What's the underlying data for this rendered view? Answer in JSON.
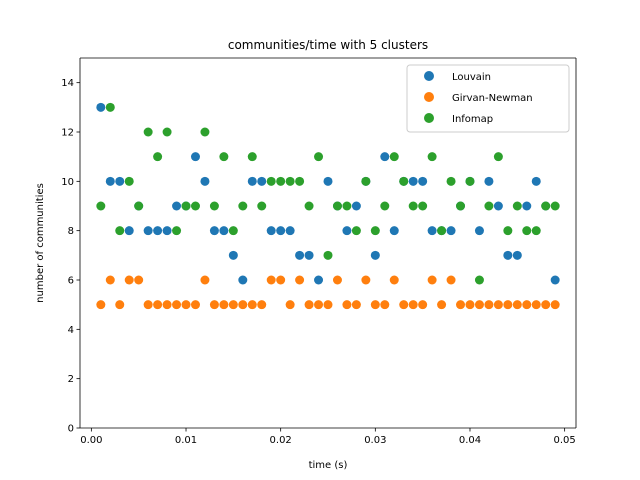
{
  "chart_data": {
    "type": "scatter",
    "title": "communities/time with 5 clusters",
    "xlabel": "time (s)",
    "ylabel": "number of communities",
    "xlim": [
      -0.0012,
      0.0512
    ],
    "ylim": [
      0,
      15
    ],
    "xticks": [
      0.0,
      0.01,
      0.02,
      0.03,
      0.04,
      0.05
    ],
    "xtick_labels": [
      "0.00",
      "0.01",
      "0.02",
      "0.03",
      "0.04",
      "0.05"
    ],
    "yticks": [
      0,
      2,
      4,
      6,
      8,
      10,
      12,
      14
    ],
    "ytick_labels": [
      "0",
      "2",
      "4",
      "6",
      "8",
      "10",
      "12",
      "14"
    ],
    "grid": false,
    "legend_position": "upper-right",
    "series": [
      {
        "name": "Louvain",
        "color": "#1f77b4",
        "points": [
          [
            0.001,
            13
          ],
          [
            0.002,
            10
          ],
          [
            0.003,
            10
          ],
          [
            0.004,
            8
          ],
          [
            0.005,
            9
          ],
          [
            0.006,
            8
          ],
          [
            0.007,
            8
          ],
          [
            0.008,
            8
          ],
          [
            0.009,
            9
          ],
          [
            0.01,
            9
          ],
          [
            0.011,
            11
          ],
          [
            0.012,
            10
          ],
          [
            0.013,
            8
          ],
          [
            0.014,
            8
          ],
          [
            0.015,
            7
          ],
          [
            0.016,
            6
          ],
          [
            0.017,
            10
          ],
          [
            0.018,
            10
          ],
          [
            0.019,
            8
          ],
          [
            0.02,
            8
          ],
          [
            0.021,
            8
          ],
          [
            0.022,
            7
          ],
          [
            0.023,
            7
          ],
          [
            0.024,
            6
          ],
          [
            0.025,
            10
          ],
          [
            0.026,
            9
          ],
          [
            0.027,
            8
          ],
          [
            0.028,
            9
          ],
          [
            0.029,
            10
          ],
          [
            0.03,
            7
          ],
          [
            0.031,
            11
          ],
          [
            0.032,
            8
          ],
          [
            0.033,
            10
          ],
          [
            0.034,
            10
          ],
          [
            0.035,
            10
          ],
          [
            0.036,
            8
          ],
          [
            0.037,
            8
          ],
          [
            0.038,
            8
          ],
          [
            0.039,
            9
          ],
          [
            0.04,
            10
          ],
          [
            0.041,
            8
          ],
          [
            0.042,
            10
          ],
          [
            0.043,
            9
          ],
          [
            0.044,
            7
          ],
          [
            0.045,
            7
          ],
          [
            0.046,
            9
          ],
          [
            0.047,
            10
          ],
          [
            0.048,
            9
          ],
          [
            0.049,
            6
          ]
        ]
      },
      {
        "name": "Girvan-Newman",
        "color": "#ff7f0e",
        "points": [
          [
            0.001,
            5
          ],
          [
            0.002,
            6
          ],
          [
            0.003,
            5
          ],
          [
            0.004,
            6
          ],
          [
            0.005,
            6
          ],
          [
            0.006,
            5
          ],
          [
            0.007,
            5
          ],
          [
            0.008,
            5
          ],
          [
            0.009,
            5
          ],
          [
            0.01,
            5
          ],
          [
            0.011,
            5
          ],
          [
            0.012,
            6
          ],
          [
            0.013,
            5
          ],
          [
            0.014,
            5
          ],
          [
            0.015,
            5
          ],
          [
            0.016,
            5
          ],
          [
            0.017,
            5
          ],
          [
            0.018,
            5
          ],
          [
            0.019,
            6
          ],
          [
            0.02,
            6
          ],
          [
            0.021,
            5
          ],
          [
            0.022,
            6
          ],
          [
            0.023,
            5
          ],
          [
            0.024,
            5
          ],
          [
            0.025,
            5
          ],
          [
            0.026,
            6
          ],
          [
            0.027,
            5
          ],
          [
            0.028,
            5
          ],
          [
            0.029,
            6
          ],
          [
            0.03,
            5
          ],
          [
            0.031,
            5
          ],
          [
            0.032,
            6
          ],
          [
            0.033,
            5
          ],
          [
            0.034,
            5
          ],
          [
            0.035,
            5
          ],
          [
            0.036,
            6
          ],
          [
            0.037,
            5
          ],
          [
            0.038,
            6
          ],
          [
            0.039,
            5
          ],
          [
            0.04,
            5
          ],
          [
            0.041,
            5
          ],
          [
            0.042,
            5
          ],
          [
            0.043,
            5
          ],
          [
            0.044,
            5
          ],
          [
            0.045,
            5
          ],
          [
            0.046,
            5
          ],
          [
            0.047,
            5
          ],
          [
            0.048,
            5
          ],
          [
            0.049,
            5
          ]
        ]
      },
      {
        "name": "Infomap",
        "color": "#2ca02c",
        "points": [
          [
            0.001,
            9
          ],
          [
            0.002,
            13
          ],
          [
            0.003,
            8
          ],
          [
            0.004,
            10
          ],
          [
            0.005,
            9
          ],
          [
            0.006,
            12
          ],
          [
            0.007,
            11
          ],
          [
            0.008,
            12
          ],
          [
            0.009,
            8
          ],
          [
            0.01,
            9
          ],
          [
            0.011,
            9
          ],
          [
            0.012,
            12
          ],
          [
            0.013,
            9
          ],
          [
            0.014,
            11
          ],
          [
            0.015,
            8
          ],
          [
            0.016,
            9
          ],
          [
            0.017,
            11
          ],
          [
            0.018,
            9
          ],
          [
            0.019,
            10
          ],
          [
            0.02,
            10
          ],
          [
            0.021,
            10
          ],
          [
            0.022,
            10
          ],
          [
            0.023,
            9
          ],
          [
            0.024,
            11
          ],
          [
            0.025,
            7
          ],
          [
            0.026,
            9
          ],
          [
            0.027,
            9
          ],
          [
            0.028,
            8
          ],
          [
            0.029,
            10
          ],
          [
            0.03,
            8
          ],
          [
            0.031,
            9
          ],
          [
            0.032,
            11
          ],
          [
            0.033,
            10
          ],
          [
            0.034,
            9
          ],
          [
            0.035,
            9
          ],
          [
            0.036,
            11
          ],
          [
            0.037,
            8
          ],
          [
            0.038,
            10
          ],
          [
            0.039,
            9
          ],
          [
            0.04,
            10
          ],
          [
            0.041,
            6
          ],
          [
            0.042,
            9
          ],
          [
            0.043,
            11
          ],
          [
            0.044,
            8
          ],
          [
            0.045,
            9
          ],
          [
            0.046,
            8
          ],
          [
            0.047,
            8
          ],
          [
            0.048,
            9
          ],
          [
            0.049,
            9
          ]
        ]
      }
    ]
  }
}
